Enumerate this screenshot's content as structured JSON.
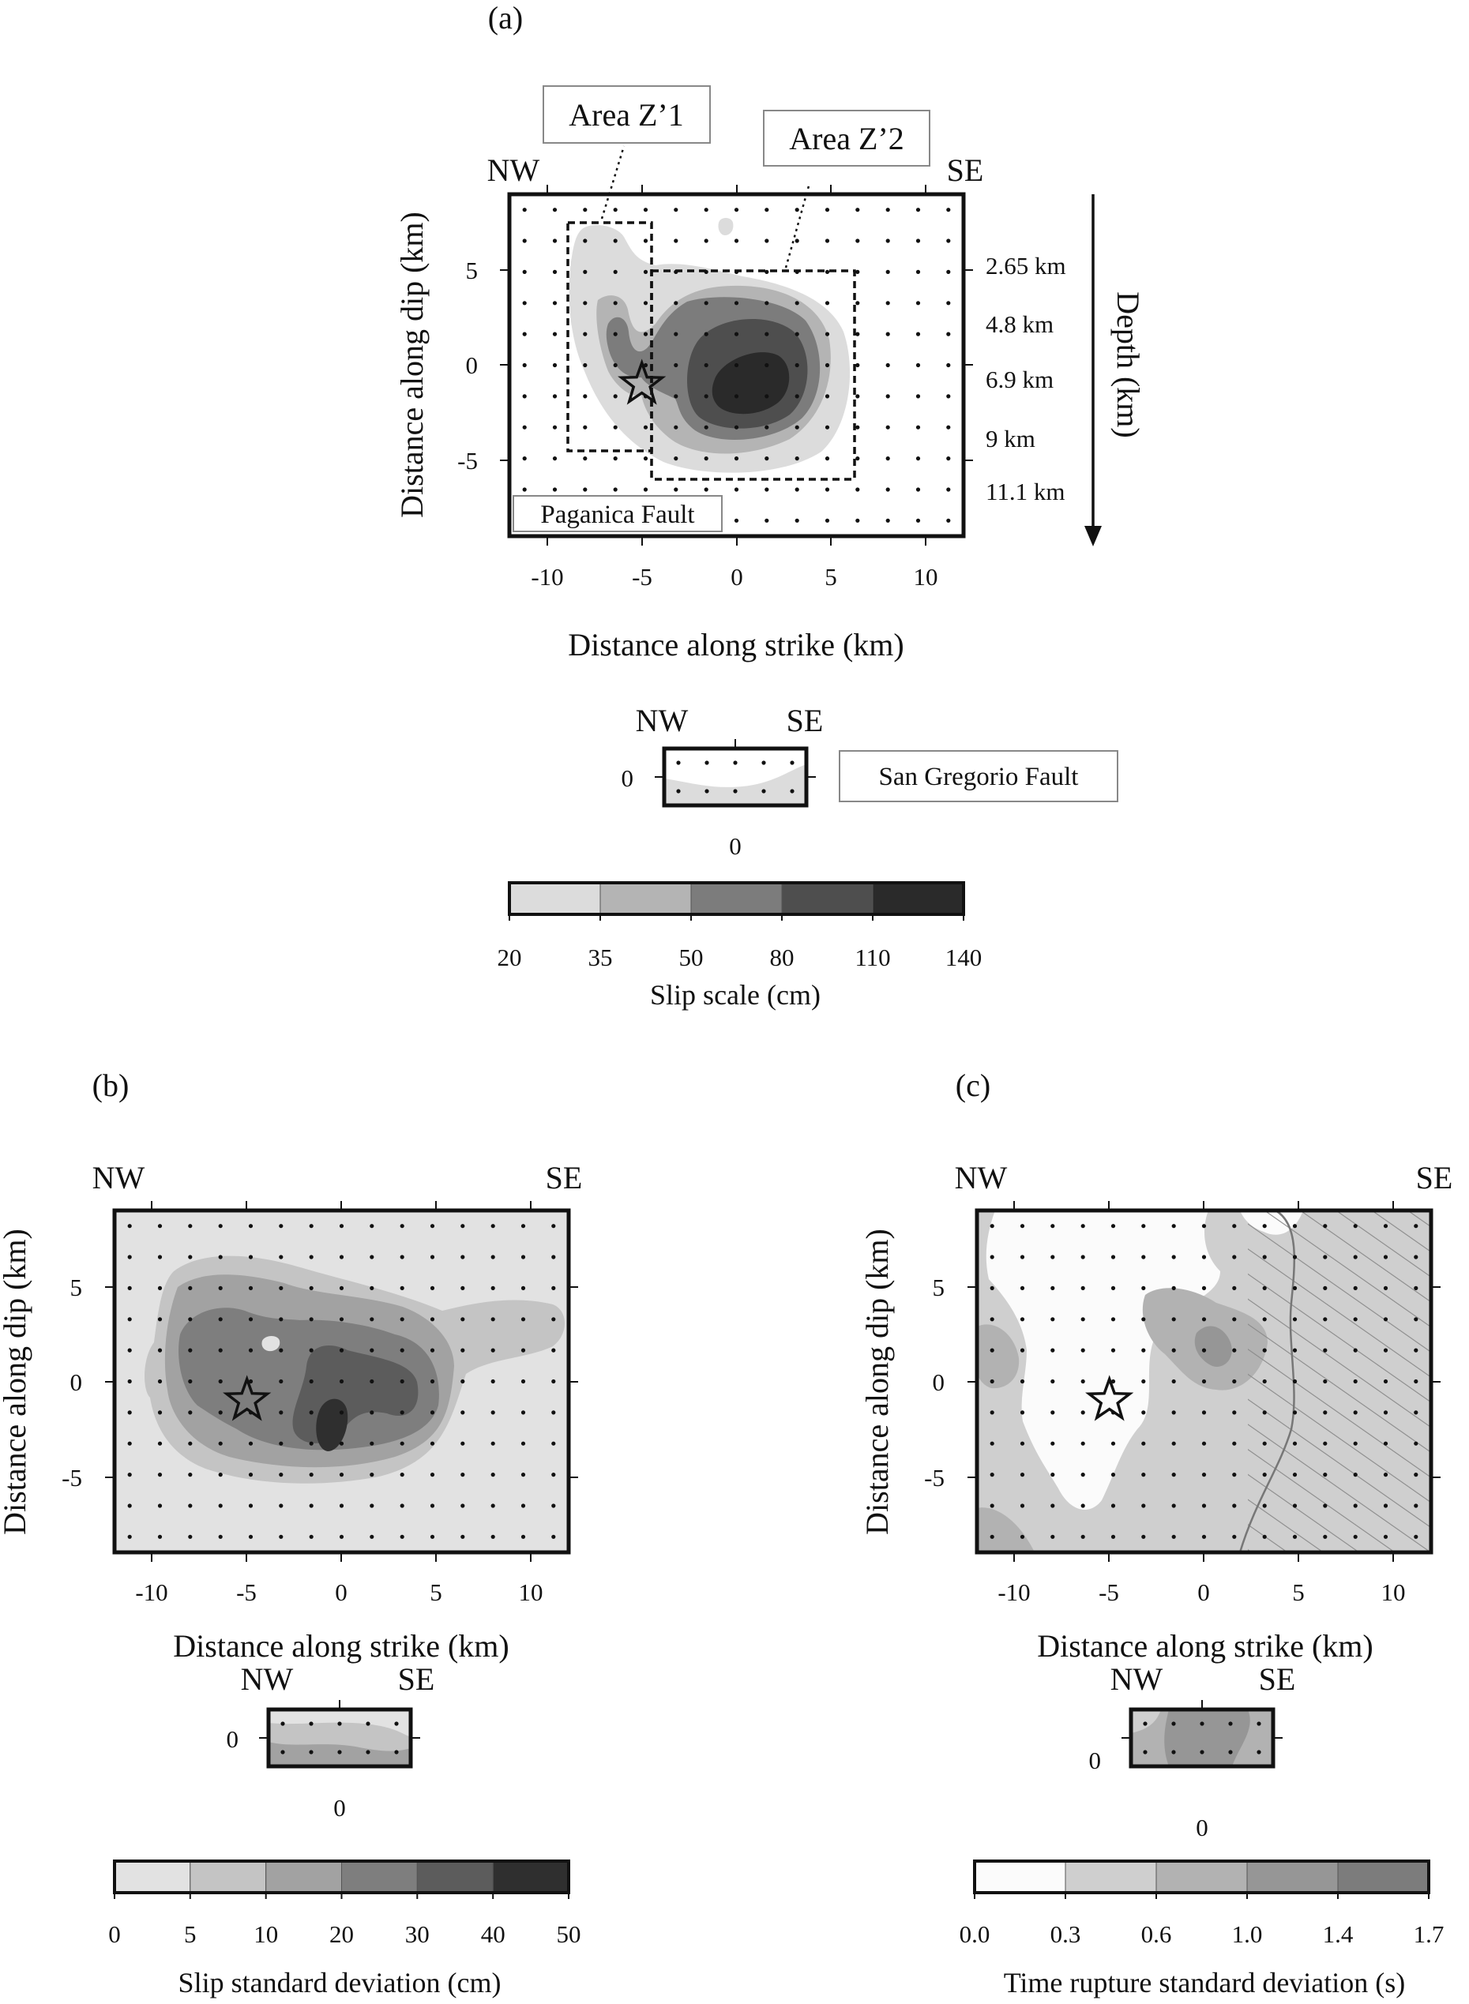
{
  "panels": {
    "a": {
      "label": "(a)",
      "x_label": "Distance along strike (km)",
      "y_label": "Distance along dip (km)",
      "dir_left": "NW",
      "dir_right": "SE",
      "fault_label": "Paganica Fault",
      "area1_label": "Area Z’1",
      "area2_label": "Area Z’2",
      "depth_axis_label": "Depth (km)",
      "depth_ticks": [
        "2.65 km",
        "4.8 km",
        "6.9 km",
        "9 km",
        "11.1 km"
      ],
      "x_ticks": [
        "-10",
        "-5",
        "0",
        "5",
        "10"
      ],
      "y_ticks": [
        "5",
        "0",
        "-5"
      ],
      "sub_fault_label": "San Gregorio Fault",
      "sub_dir_left": "NW",
      "sub_dir_right": "SE",
      "sub_x_tick": "0",
      "sub_y_tick": "0",
      "colorbar_ticks": [
        "20",
        "35",
        "50",
        "80",
        "110",
        "140"
      ],
      "colorbar_label": "Slip scale (cm)"
    },
    "b": {
      "label": "(b)",
      "x_label": "Distance along strike (km)",
      "y_label": "Distance along dip (km)",
      "dir_left": "NW",
      "dir_right": "SE",
      "x_ticks": [
        "-10",
        "-5",
        "0",
        "5",
        "10"
      ],
      "y_ticks": [
        "5",
        "0",
        "-5"
      ],
      "sub_dir_left": "NW",
      "sub_dir_right": "SE",
      "sub_x_tick": "0",
      "sub_y_tick": "0",
      "colorbar_ticks": [
        "0",
        "5",
        "10",
        "20",
        "30",
        "40",
        "50"
      ],
      "colorbar_label": "Slip standard deviation (cm)"
    },
    "c": {
      "label": "(c)",
      "x_label": "Distance along strike (km)",
      "y_label": "Distance along dip (km)",
      "dir_left": "NW",
      "dir_right": "SE",
      "x_ticks": [
        "-10",
        "-5",
        "0",
        "5",
        "10"
      ],
      "y_ticks": [
        "5",
        "0",
        "-5"
      ],
      "sub_dir_left": "NW",
      "sub_dir_right": "SE",
      "sub_x_tick": "0",
      "sub_y_tick": "0",
      "colorbar_ticks": [
        "0.0",
        "0.3",
        "0.6",
        "1.0",
        "1.4",
        "1.7"
      ],
      "colorbar_label": "Time rupture standard deviation (s)"
    }
  },
  "colors": {
    "a_levels": [
      "#dcdcdc",
      "#b4b4b4",
      "#7c7c7c",
      "#4e4e4e",
      "#2a2a2a"
    ],
    "b_levels": [
      "#e2e2e2",
      "#c4c4c4",
      "#a2a2a2",
      "#7e7e7e",
      "#5c5c5c",
      "#2f2f2f"
    ],
    "c_levels": [
      "#fbfbfb",
      "#cfcfcf",
      "#b2b2b2",
      "#969696",
      "#7c7c7c"
    ]
  },
  "chart_data": [
    {
      "type": "heatmap",
      "panel": "a",
      "title": "(a)",
      "xlabel": "Distance along strike (km)",
      "ylabel": "Distance along dip (km)",
      "xlim": [
        -12,
        12
      ],
      "ylim": [
        -9,
        9
      ],
      "x_ticks": [
        -10,
        -5,
        0,
        5,
        10
      ],
      "y_ticks": [
        5,
        0,
        -5
      ],
      "depth_ticks_km": [
        2.65,
        4.8,
        6.9,
        9,
        11.1
      ],
      "levels_cm": [
        20,
        35,
        50,
        80,
        110,
        140
      ],
      "hypocenter": {
        "x": -5,
        "y": -1
      },
      "slip_peak": {
        "x": 1.5,
        "y": -1,
        "max_level_cm": 110
      },
      "areas": [
        {
          "name": "Area Z’1",
          "x": [
            -8.7,
            -4.4
          ],
          "y": [
            -4.5,
            7.6
          ]
        },
        {
          "name": "Area Z’2",
          "x": [
            -4.4,
            6.5
          ],
          "y": [
            -6,
            5
          ]
        }
      ],
      "colorbar": {
        "ticks": [
          20,
          35,
          50,
          80,
          110,
          140
        ],
        "label": "Slip scale (cm)"
      }
    },
    {
      "type": "heatmap",
      "panel": "b",
      "title": "(b)",
      "xlabel": "Distance along strike (km)",
      "ylabel": "Distance along dip (km)",
      "xlim": [
        -12,
        12
      ],
      "ylim": [
        -9,
        9
      ],
      "x_ticks": [
        -10,
        -5,
        0,
        5,
        10
      ],
      "y_ticks": [
        5,
        0,
        -5
      ],
      "levels_cm": [
        0,
        5,
        10,
        20,
        30,
        40,
        50
      ],
      "hypocenter": {
        "x": -5,
        "y": -1
      },
      "colorbar": {
        "ticks": [
          0,
          5,
          10,
          20,
          30,
          40,
          50
        ],
        "label": "Slip standard deviation (cm)"
      }
    },
    {
      "type": "heatmap",
      "panel": "c",
      "title": "(c)",
      "xlabel": "Distance along strike (km)",
      "ylabel": "Distance along dip (km)",
      "xlim": [
        -12,
        12
      ],
      "ylim": [
        -9,
        9
      ],
      "x_ticks": [
        -10,
        -5,
        0,
        5,
        10
      ],
      "y_ticks": [
        5,
        0,
        -5
      ],
      "levels_s": [
        0.0,
        0.3,
        0.6,
        1.0,
        1.4,
        1.7
      ],
      "hypocenter": {
        "x": -5,
        "y": -1
      },
      "hatched_region_x_from": 3,
      "colorbar": {
        "ticks": [
          0.0,
          0.3,
          0.6,
          1.0,
          1.4,
          1.7
        ],
        "label": "Time rupture standard deviation (s)"
      }
    }
  ]
}
